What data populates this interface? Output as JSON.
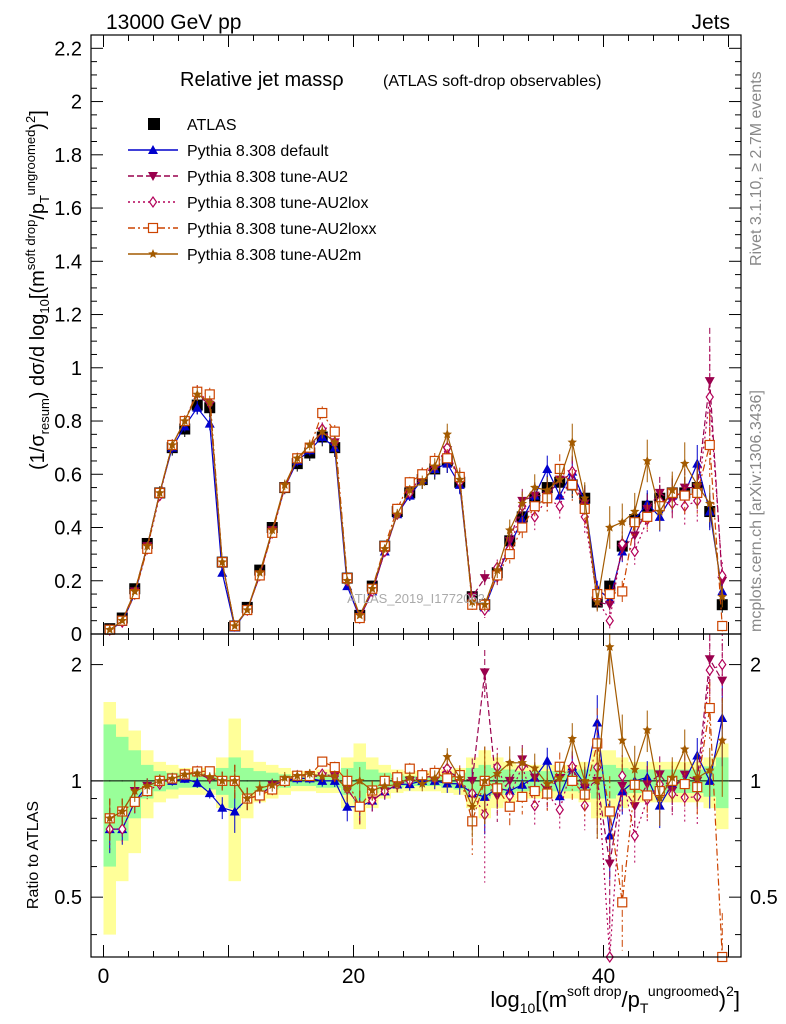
{
  "header": {
    "energy": "13000 GeV pp",
    "process": "Jets"
  },
  "side_labels": {
    "rivet": "Rivet 3.1.10, ≥ 2.7M events",
    "mcplots": "mcplots.cern.ch [arXiv:1306.3436]"
  },
  "watermark": "ATLAS_2019_I1772062",
  "chart_data": {
    "type": "scatter",
    "title": "Relative jet mass",
    "title_symbol": "ρ",
    "subtitle": "(ATLAS soft-drop observables)",
    "xlabel": "log10[(m^{soft drop}/p_T^{ungroomed})^2]",
    "ylabel": "(1/σ_resum) dσ/d log10[(m^{soft drop}/p_T^{ungroomed})^2]",
    "ratio_ylabel": "Ratio to ATLAS",
    "xlim": [
      -1,
      51
    ],
    "ylim": [
      0,
      2.25
    ],
    "ratio_ylim": [
      0.35,
      2.4
    ],
    "x_ticks": [
      0,
      20,
      40
    ],
    "y_ticks": [
      0,
      0.2,
      0.4,
      0.6,
      0.8,
      1,
      1.2,
      1.4,
      1.6,
      1.8,
      2,
      2.2
    ],
    "ratio_ticks": [
      0.5,
      1,
      2
    ],
    "legend_position": "top-left",
    "x": [
      0.5,
      1.5,
      2.5,
      3.5,
      4.5,
      5.5,
      6.5,
      7.5,
      8.5,
      9.5,
      10.5,
      11.5,
      12.5,
      13.5,
      14.5,
      15.5,
      16.5,
      17.5,
      18.5,
      19.5,
      20.5,
      21.5,
      22.5,
      23.5,
      24.5,
      25.5,
      26.5,
      27.5,
      28.5,
      29.5,
      30.5,
      31.5,
      32.5,
      33.5,
      34.5,
      35.5,
      36.5,
      37.5,
      38.5,
      39.5,
      40.5,
      41.5,
      42.5,
      43.5,
      44.5,
      45.5,
      46.5,
      47.5,
      48.5,
      49.5
    ],
    "data": {
      "name": "ATLAS",
      "values": [
        0.02,
        0.06,
        0.17,
        0.34,
        0.53,
        0.7,
        0.77,
        0.86,
        0.85,
        0.27,
        0.03,
        0.1,
        0.24,
        0.4,
        0.55,
        0.64,
        0.68,
        0.74,
        0.7,
        0.21,
        0.07,
        0.18,
        0.33,
        0.46,
        0.53,
        0.58,
        0.62,
        0.65,
        0.57,
        0.14,
        0.11,
        0.23,
        0.35,
        0.44,
        0.51,
        0.55,
        0.57,
        0.56,
        0.51,
        0.12,
        0.18,
        0.33,
        0.43,
        0.48,
        0.51,
        0.53,
        0.53,
        0.55,
        0.46,
        0.11
      ],
      "uncertainty": [
        0.003,
        0.005,
        0.012,
        0.02,
        0.025,
        0.03,
        0.03,
        0.035,
        0.035,
        0.02,
        0.004,
        0.008,
        0.015,
        0.02,
        0.025,
        0.03,
        0.03,
        0.035,
        0.035,
        0.02,
        0.008,
        0.012,
        0.02,
        0.025,
        0.03,
        0.035,
        0.04,
        0.045,
        0.04,
        0.02,
        0.015,
        0.02,
        0.03,
        0.035,
        0.04,
        0.045,
        0.05,
        0.05,
        0.05,
        0.03,
        0.03,
        0.04,
        0.045,
        0.05,
        0.05,
        0.055,
        0.06,
        0.06,
        0.06,
        0.03
      ],
      "band": [
        0.6,
        0.45,
        0.35,
        0.2,
        0.12,
        0.1,
        0.08,
        0.08,
        0.08,
        0.15,
        0.45,
        0.2,
        0.12,
        0.1,
        0.08,
        0.06,
        0.06,
        0.07,
        0.07,
        0.15,
        0.25,
        0.15,
        0.1,
        0.07,
        0.06,
        0.06,
        0.06,
        0.07,
        0.08,
        0.15,
        0.2,
        0.15,
        0.12,
        0.1,
        0.1,
        0.1,
        0.1,
        0.1,
        0.12,
        0.2,
        0.2,
        0.15,
        0.12,
        0.12,
        0.12,
        0.12,
        0.12,
        0.12,
        0.15,
        0.25
      ],
      "band_inner": [
        0.4,
        0.3,
        0.2,
        0.1,
        0.06,
        0.05,
        0.04,
        0.04,
        0.05,
        0.08,
        0.15,
        0.08,
        0.06,
        0.05,
        0.04,
        0.03,
        0.03,
        0.04,
        0.04,
        0.08,
        0.12,
        0.07,
        0.05,
        0.04,
        0.03,
        0.03,
        0.03,
        0.04,
        0.05,
        0.08,
        0.1,
        0.08,
        0.07,
        0.06,
        0.06,
        0.06,
        0.06,
        0.06,
        0.07,
        0.1,
        0.1,
        0.08,
        0.07,
        0.07,
        0.07,
        0.07,
        0.07,
        0.07,
        0.09,
        0.15
      ]
    },
    "series": [
      {
        "name": "Pythia 8.308 default",
        "color": "#0000cc",
        "marker": "triangle-up",
        "dash": "solid",
        "values": [
          0.015,
          0.045,
          0.15,
          0.33,
          0.53,
          0.7,
          0.78,
          0.85,
          0.79,
          0.23,
          0.025,
          0.09,
          0.22,
          0.39,
          0.55,
          0.65,
          0.69,
          0.74,
          0.7,
          0.18,
          0.06,
          0.16,
          0.31,
          0.45,
          0.52,
          0.58,
          0.62,
          0.64,
          0.56,
          0.13,
          0.1,
          0.22,
          0.33,
          0.43,
          0.52,
          0.62,
          0.52,
          0.61,
          0.5,
          0.17,
          0.13,
          0.31,
          0.43,
          0.49,
          0.44,
          0.52,
          0.53,
          0.64,
          0.46,
          0.16
        ],
        "errors": [
          0.002,
          0.004,
          0.01,
          0.015,
          0.02,
          0.02,
          0.02,
          0.025,
          0.025,
          0.015,
          0.003,
          0.006,
          0.01,
          0.015,
          0.02,
          0.02,
          0.02,
          0.025,
          0.025,
          0.015,
          0.006,
          0.01,
          0.015,
          0.02,
          0.02,
          0.025,
          0.03,
          0.035,
          0.035,
          0.02,
          0.02,
          0.025,
          0.03,
          0.04,
          0.045,
          0.05,
          0.05,
          0.055,
          0.055,
          0.03,
          0.03,
          0.04,
          0.05,
          0.05,
          0.055,
          0.06,
          0.06,
          0.07,
          0.07,
          0.04
        ]
      },
      {
        "name": "Pythia 8.308 tune-AU2",
        "color": "#99004d",
        "marker": "triangle-down",
        "dash": "dashed",
        "values": [
          0.016,
          0.05,
          0.16,
          0.33,
          0.53,
          0.71,
          0.8,
          0.9,
          0.86,
          0.27,
          0.03,
          0.09,
          0.22,
          0.39,
          0.55,
          0.66,
          0.7,
          0.76,
          0.72,
          0.2,
          0.06,
          0.16,
          0.31,
          0.45,
          0.53,
          0.59,
          0.64,
          0.69,
          0.58,
          0.14,
          0.21,
          0.21,
          0.35,
          0.5,
          0.52,
          0.52,
          0.58,
          0.6,
          0.49,
          0.12,
          0.11,
          0.32,
          0.37,
          0.47,
          0.53,
          0.5,
          0.55,
          0.55,
          0.95,
          0.2
        ],
        "errors": [
          0.002,
          0.004,
          0.01,
          0.015,
          0.02,
          0.02,
          0.02,
          0.025,
          0.025,
          0.015,
          0.003,
          0.006,
          0.01,
          0.015,
          0.02,
          0.02,
          0.02,
          0.025,
          0.025,
          0.015,
          0.006,
          0.01,
          0.015,
          0.02,
          0.02,
          0.025,
          0.03,
          0.035,
          0.035,
          0.02,
          0.03,
          0.03,
          0.035,
          0.045,
          0.05,
          0.05,
          0.055,
          0.06,
          0.06,
          0.035,
          0.035,
          0.045,
          0.05,
          0.055,
          0.06,
          0.065,
          0.07,
          0.08,
          0.2,
          0.05
        ]
      },
      {
        "name": "Pythia 8.308 tune-AU2lox",
        "color": "#b30059",
        "marker": "diamond-open",
        "dash": "dotted",
        "values": [
          0.015,
          0.045,
          0.15,
          0.32,
          0.52,
          0.71,
          0.8,
          0.91,
          0.87,
          0.27,
          0.03,
          0.09,
          0.22,
          0.38,
          0.55,
          0.66,
          0.7,
          0.77,
          0.72,
          0.2,
          0.06,
          0.16,
          0.31,
          0.45,
          0.53,
          0.6,
          0.63,
          0.7,
          0.57,
          0.13,
          0.09,
          0.25,
          0.32,
          0.48,
          0.44,
          0.51,
          0.48,
          0.61,
          0.44,
          0.13,
          0.05,
          0.34,
          0.31,
          0.43,
          0.5,
          0.49,
          0.48,
          0.5,
          0.89,
          0.22
        ],
        "errors": [
          0.002,
          0.004,
          0.01,
          0.015,
          0.02,
          0.02,
          0.02,
          0.025,
          0.025,
          0.015,
          0.003,
          0.006,
          0.01,
          0.015,
          0.02,
          0.02,
          0.02,
          0.025,
          0.025,
          0.015,
          0.006,
          0.01,
          0.015,
          0.02,
          0.02,
          0.025,
          0.03,
          0.035,
          0.035,
          0.02,
          0.03,
          0.03,
          0.035,
          0.045,
          0.05,
          0.05,
          0.055,
          0.06,
          0.06,
          0.035,
          0.035,
          0.045,
          0.05,
          0.055,
          0.06,
          0.065,
          0.07,
          0.08,
          0.18,
          0.05
        ]
      },
      {
        "name": "Pythia 8.308 tune-AU2loxx",
        "color": "#cc4400",
        "marker": "square-open",
        "dash": "dashdot",
        "values": [
          0.016,
          0.05,
          0.15,
          0.32,
          0.53,
          0.71,
          0.8,
          0.91,
          0.9,
          0.27,
          0.03,
          0.09,
          0.22,
          0.38,
          0.55,
          0.66,
          0.7,
          0.83,
          0.76,
          0.21,
          0.06,
          0.17,
          0.33,
          0.47,
          0.57,
          0.6,
          0.65,
          0.66,
          0.59,
          0.11,
          0.11,
          0.22,
          0.3,
          0.4,
          0.48,
          0.51,
          0.62,
          0.56,
          0.47,
          0.15,
          0.15,
          0.16,
          0.42,
          0.44,
          0.48,
          0.53,
          0.52,
          0.53,
          0.71,
          0.03
        ],
        "errors": [
          0.002,
          0.004,
          0.01,
          0.015,
          0.02,
          0.02,
          0.02,
          0.025,
          0.025,
          0.015,
          0.003,
          0.006,
          0.01,
          0.015,
          0.02,
          0.02,
          0.02,
          0.025,
          0.025,
          0.015,
          0.006,
          0.01,
          0.015,
          0.02,
          0.02,
          0.025,
          0.03,
          0.035,
          0.035,
          0.02,
          0.025,
          0.03,
          0.035,
          0.04,
          0.045,
          0.05,
          0.055,
          0.06,
          0.06,
          0.035,
          0.035,
          0.04,
          0.05,
          0.055,
          0.06,
          0.065,
          0.07,
          0.08,
          0.12,
          0.02
        ]
      },
      {
        "name": "Pythia 8.308 tune-AU2m",
        "color": "#a35a00",
        "marker": "star",
        "dash": "solid",
        "values": [
          0.016,
          0.05,
          0.16,
          0.33,
          0.53,
          0.71,
          0.8,
          0.9,
          0.87,
          0.27,
          0.03,
          0.09,
          0.23,
          0.39,
          0.56,
          0.66,
          0.71,
          0.76,
          0.72,
          0.2,
          0.07,
          0.17,
          0.32,
          0.45,
          0.54,
          0.57,
          0.63,
          0.75,
          0.58,
          0.12,
          0.11,
          0.24,
          0.39,
          0.49,
          0.55,
          0.54,
          0.58,
          0.72,
          0.51,
          0.12,
          0.4,
          0.42,
          0.46,
          0.65,
          0.46,
          0.54,
          0.64,
          0.56,
          0.49,
          0.14
        ],
        "errors": [
          0.002,
          0.004,
          0.01,
          0.015,
          0.02,
          0.02,
          0.02,
          0.025,
          0.025,
          0.015,
          0.003,
          0.006,
          0.01,
          0.015,
          0.02,
          0.02,
          0.02,
          0.025,
          0.025,
          0.015,
          0.006,
          0.01,
          0.015,
          0.02,
          0.02,
          0.025,
          0.03,
          0.04,
          0.035,
          0.02,
          0.025,
          0.03,
          0.04,
          0.045,
          0.05,
          0.05,
          0.055,
          0.07,
          0.06,
          0.035,
          0.08,
          0.07,
          0.07,
          0.08,
          0.07,
          0.07,
          0.08,
          0.09,
          0.07,
          0.04
        ]
      }
    ]
  }
}
